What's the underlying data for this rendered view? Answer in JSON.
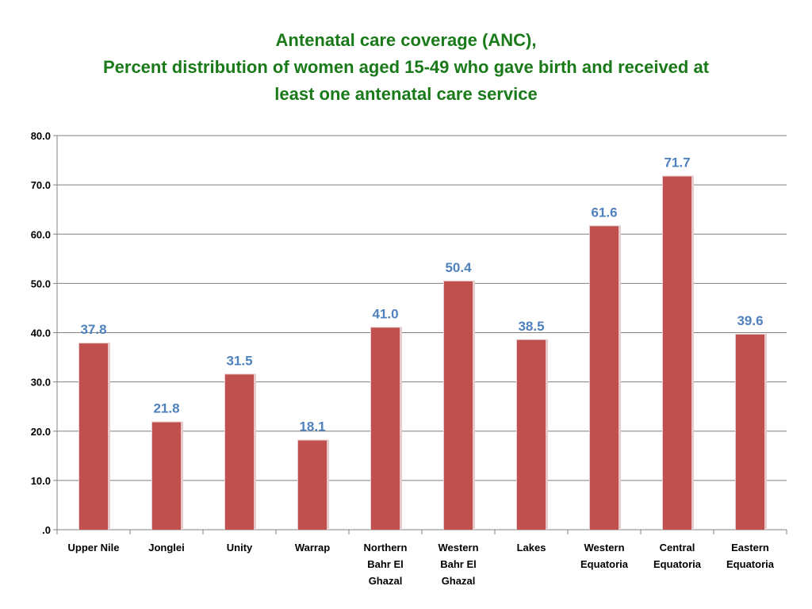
{
  "colors": {
    "title": "#1a7a1a",
    "bar": "#c0504d",
    "bar_shadow": "#e6c9c9",
    "data_label": "#4f81bd",
    "grid": "#808080",
    "axis": "#808080"
  },
  "chart_data": {
    "type": "bar",
    "title_lines": [
      "Antenatal care coverage (ANC),",
      "Percent distribution of women aged 15-49 who gave birth and received at",
      "least one antenatal care service"
    ],
    "xlabel": "",
    "ylabel": "",
    "ylim": [
      0,
      80
    ],
    "yticks": [
      0,
      10,
      20,
      30,
      40,
      50,
      60,
      70,
      80
    ],
    "ytick_labels": [
      ".0",
      "10.0",
      "20.0",
      "30.0",
      "40.0",
      "50.0",
      "60.0",
      "70.0",
      "80.0"
    ],
    "grid": true,
    "legend": "none",
    "categories": [
      [
        "Upper Nile"
      ],
      [
        "Jonglei"
      ],
      [
        "Unity"
      ],
      [
        "Warrap"
      ],
      [
        "Northern",
        "Bahr El",
        "Ghazal"
      ],
      [
        "Western",
        "Bahr El",
        "Ghazal"
      ],
      [
        "Lakes"
      ],
      [
        "Western",
        "Equatoria"
      ],
      [
        "Central",
        "Equatoria"
      ],
      [
        "Eastern",
        "Equatoria"
      ]
    ],
    "values": [
      37.8,
      21.8,
      31.5,
      18.1,
      41.0,
      50.4,
      38.5,
      61.6,
      71.7,
      39.6
    ],
    "data_labels": [
      "37.8",
      "21.8",
      "31.5",
      "18.1",
      "41.0",
      "50.4",
      "38.5",
      "61.6",
      "71.7",
      "39.6"
    ]
  }
}
